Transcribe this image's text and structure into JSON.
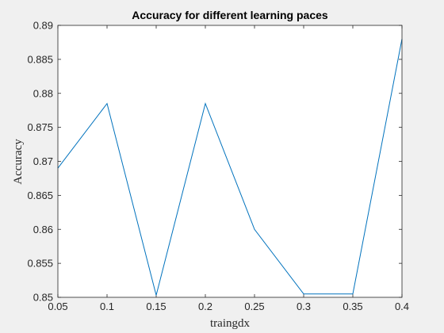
{
  "chart_data": {
    "type": "line",
    "title": "Accuracy for different learning paces",
    "xlabel": "traingdx",
    "ylabel": "Accuracy",
    "xlim": [
      0.05,
      0.4
    ],
    "ylim": [
      0.85,
      0.89
    ],
    "xticks": [
      0.05,
      0.1,
      0.15,
      0.2,
      0.25,
      0.3,
      0.35,
      0.4
    ],
    "xtick_labels": [
      "0.05",
      "0.1",
      "0.15",
      "0.2",
      "0.25",
      "0.3",
      "0.35",
      "0.4"
    ],
    "yticks": [
      0.85,
      0.855,
      0.86,
      0.865,
      0.87,
      0.875,
      0.88,
      0.885,
      0.89
    ],
    "ytick_labels": [
      "0.85",
      "0.855",
      "0.86",
      "0.865",
      "0.87",
      "0.875",
      "0.88",
      "0.885",
      "0.89"
    ],
    "grid": false,
    "series": [
      {
        "x": [
          0.05,
          0.1,
          0.15,
          0.2,
          0.25,
          0.3,
          0.35,
          0.4
        ],
        "y": [
          0.869,
          0.8785,
          0.8503,
          0.8785,
          0.86,
          0.8505,
          0.8505,
          0.888
        ],
        "color": "#0072bd"
      }
    ]
  }
}
